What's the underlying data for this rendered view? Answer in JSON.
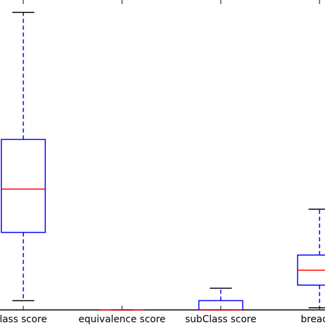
{
  "chart_data": {
    "type": "box",
    "categories": [
      "lass score",
      "equivalence score",
      "subClass score",
      "breadth"
    ],
    "whislo": [
      3,
      0,
      0,
      0.7
    ],
    "q1": [
      25,
      0,
      0,
      8
    ],
    "median": [
      39,
      0,
      0,
      12.8
    ],
    "q3": [
      55,
      0,
      3,
      17.7
    ],
    "whishi": [
      96,
      0,
      7,
      32.5
    ],
    "box_color": "#0000ff",
    "median_color": "#ff0000",
    "ylim": [
      0,
      100
    ]
  }
}
